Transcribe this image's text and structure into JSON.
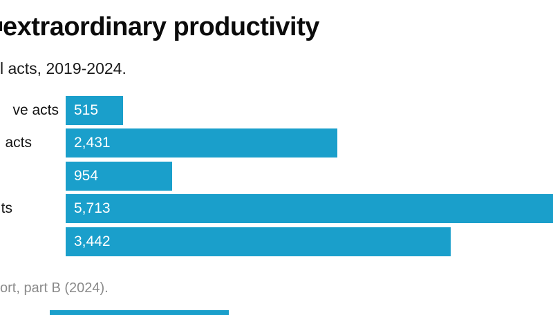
{
  "title": "extraordinary productivity",
  "subtitle": "l acts, 2019-2024.",
  "footer": "ort, part B (2024).",
  "colors": {
    "bar": "#1a9fcb",
    "title_text": "#0b0b0b",
    "subtitle_text": "#1a1a1a",
    "footer_text": "#8a8a8a",
    "value_text": "#ffffff",
    "background": "#ffffff"
  },
  "chart_data": {
    "type": "bar",
    "orientation": "horizontal",
    "title": "extraordinary productivity",
    "subtitle": "l acts, 2019-2024.",
    "categories": [
      "ve acts",
      "acts",
      "",
      "ts",
      ""
    ],
    "values": [
      515,
      2431,
      954,
      5713,
      3442
    ],
    "value_labels": [
      "515",
      "2,431",
      "954",
      "5,713",
      "3,442"
    ],
    "bar_color": "#1a9fcb",
    "value_label_position": "inside-start",
    "axis_visible": false,
    "grid": false,
    "legend": "none",
    "cropped_edges": true
  }
}
